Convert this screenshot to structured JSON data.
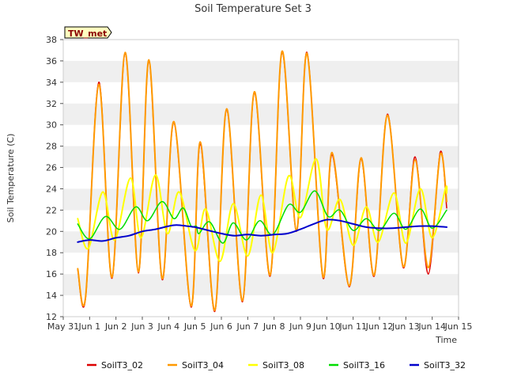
{
  "chart_data": {
    "type": "line",
    "title": "Soil Temperature Set 3",
    "xlabel": "Time",
    "ylabel": "Soil Temperature (C)",
    "station_badge": "TW_met",
    "xlim": [
      0,
      15
    ],
    "ylim": [
      12,
      38
    ],
    "xticks": [
      {
        "x": 0,
        "label": "May 31"
      },
      {
        "x": 1,
        "label": "Jun 1"
      },
      {
        "x": 2,
        "label": "Jun 2"
      },
      {
        "x": 3,
        "label": "Jun 3"
      },
      {
        "x": 4,
        "label": "Jun 4"
      },
      {
        "x": 5,
        "label": "Jun 5"
      },
      {
        "x": 6,
        "label": "Jun 6"
      },
      {
        "x": 7,
        "label": "Jun 7"
      },
      {
        "x": 8,
        "label": "Jun 8"
      },
      {
        "x": 9,
        "label": "Jun 9"
      },
      {
        "x": 10,
        "label": "Jun 10"
      },
      {
        "x": 11,
        "label": "Jun 11"
      },
      {
        "x": 12,
        "label": "Jun 12"
      },
      {
        "x": 13,
        "label": "Jun 13"
      },
      {
        "x": 14,
        "label": "Jun 14"
      },
      {
        "x": 15,
        "label": "Jun 15"
      }
    ],
    "yticks": [
      12,
      14,
      16,
      18,
      20,
      22,
      24,
      26,
      28,
      30,
      32,
      34,
      36,
      38
    ],
    "grid": "horizontal bands",
    "legend_position": "bottom",
    "series": [
      {
        "name": "SoilT3_02",
        "color": "#dd0000",
        "width": 1.5,
        "points": [
          [
            0.55,
            16.4
          ],
          [
            0.85,
            13.8
          ],
          [
            1.35,
            34.0
          ],
          [
            1.85,
            15.6
          ],
          [
            2.35,
            36.7
          ],
          [
            2.85,
            16.1
          ],
          [
            3.25,
            36.0
          ],
          [
            3.75,
            15.5
          ],
          [
            4.2,
            30.2
          ],
          [
            4.85,
            12.9
          ],
          [
            5.2,
            28.2
          ],
          [
            5.75,
            12.5
          ],
          [
            6.2,
            31.4
          ],
          [
            6.8,
            13.4
          ],
          [
            7.25,
            33.0
          ],
          [
            7.85,
            15.8
          ],
          [
            8.3,
            36.8
          ],
          [
            8.85,
            20.0
          ],
          [
            9.25,
            36.8
          ],
          [
            9.85,
            15.7
          ],
          [
            10.2,
            27.2
          ],
          [
            10.85,
            14.8
          ],
          [
            11.3,
            26.8
          ],
          [
            11.8,
            15.8
          ],
          [
            12.3,
            31.0
          ],
          [
            12.9,
            16.6
          ],
          [
            13.35,
            27.0
          ],
          [
            13.85,
            16.0
          ],
          [
            14.3,
            27.4
          ],
          [
            14.55,
            22.2
          ]
        ]
      },
      {
        "name": "SoilT3_04",
        "color": "#ff9900",
        "width": 2,
        "points": [
          [
            0.55,
            16.5
          ],
          [
            0.85,
            13.9
          ],
          [
            1.35,
            33.8
          ],
          [
            1.85,
            15.7
          ],
          [
            2.35,
            36.8
          ],
          [
            2.85,
            16.2
          ],
          [
            3.25,
            36.1
          ],
          [
            3.75,
            15.6
          ],
          [
            4.2,
            30.3
          ],
          [
            4.85,
            13.0
          ],
          [
            5.2,
            28.4
          ],
          [
            5.75,
            12.6
          ],
          [
            6.2,
            31.5
          ],
          [
            6.8,
            13.5
          ],
          [
            7.25,
            33.1
          ],
          [
            7.85,
            15.9
          ],
          [
            8.3,
            36.9
          ],
          [
            8.85,
            20.1
          ],
          [
            9.25,
            36.7
          ],
          [
            9.85,
            15.8
          ],
          [
            10.2,
            27.4
          ],
          [
            10.85,
            14.9
          ],
          [
            11.3,
            26.9
          ],
          [
            11.8,
            15.9
          ],
          [
            12.3,
            30.9
          ],
          [
            12.9,
            16.7
          ],
          [
            13.35,
            26.7
          ],
          [
            13.85,
            16.6
          ],
          [
            14.3,
            27.2
          ],
          [
            14.55,
            22.8
          ]
        ]
      },
      {
        "name": "SoilT3_08",
        "color": "#ffff00",
        "width": 2,
        "points": [
          [
            0.55,
            21.2
          ],
          [
            0.95,
            18.4
          ],
          [
            1.5,
            23.7
          ],
          [
            1.95,
            19.2
          ],
          [
            2.55,
            25.0
          ],
          [
            2.95,
            19.4
          ],
          [
            3.5,
            25.3
          ],
          [
            3.95,
            19.8
          ],
          [
            4.4,
            23.7
          ],
          [
            5.0,
            18.2
          ],
          [
            5.4,
            22.1
          ],
          [
            5.95,
            17.2
          ],
          [
            6.45,
            22.6
          ],
          [
            7.0,
            17.7
          ],
          [
            7.5,
            23.4
          ],
          [
            7.95,
            18.0
          ],
          [
            8.55,
            25.2
          ],
          [
            9.0,
            21.3
          ],
          [
            9.6,
            26.8
          ],
          [
            10.0,
            20.2
          ],
          [
            10.5,
            23.0
          ],
          [
            11.0,
            18.7
          ],
          [
            11.5,
            22.3
          ],
          [
            11.95,
            19.0
          ],
          [
            12.55,
            23.6
          ],
          [
            13.0,
            18.9
          ],
          [
            13.55,
            24.0
          ],
          [
            14.0,
            19.4
          ],
          [
            14.5,
            24.0
          ],
          [
            14.55,
            23.6
          ]
        ]
      },
      {
        "name": "SoilT3_16",
        "color": "#00dd00",
        "width": 1.5,
        "points": [
          [
            0.55,
            20.7
          ],
          [
            1.0,
            19.3
          ],
          [
            1.6,
            21.4
          ],
          [
            2.15,
            20.2
          ],
          [
            2.75,
            22.3
          ],
          [
            3.2,
            21.0
          ],
          [
            3.75,
            22.8
          ],
          [
            4.2,
            21.2
          ],
          [
            4.55,
            22.2
          ],
          [
            4.85,
            20.5
          ],
          [
            5.05,
            20.5
          ],
          [
            5.15,
            19.8
          ],
          [
            5.55,
            20.9
          ],
          [
            6.05,
            18.9
          ],
          [
            6.45,
            20.8
          ],
          [
            6.95,
            19.2
          ],
          [
            7.45,
            21.0
          ],
          [
            7.95,
            19.7
          ],
          [
            8.55,
            22.5
          ],
          [
            9.0,
            21.8
          ],
          [
            9.55,
            23.8
          ],
          [
            10.05,
            21.4
          ],
          [
            10.5,
            22.0
          ],
          [
            11.0,
            20.1
          ],
          [
            11.5,
            21.2
          ],
          [
            12.0,
            20.1
          ],
          [
            12.55,
            21.7
          ],
          [
            13.0,
            20.2
          ],
          [
            13.55,
            22.1
          ],
          [
            14.0,
            20.3
          ],
          [
            14.55,
            22.0
          ]
        ]
      },
      {
        "name": "SoilT3_32",
        "color": "#0000cc",
        "width": 2,
        "points": [
          [
            0.55,
            19.0
          ],
          [
            1.0,
            19.2
          ],
          [
            1.5,
            19.1
          ],
          [
            2.0,
            19.4
          ],
          [
            2.5,
            19.6
          ],
          [
            3.0,
            20.0
          ],
          [
            3.5,
            20.2
          ],
          [
            4.0,
            20.5
          ],
          [
            4.3,
            20.6
          ],
          [
            4.7,
            20.5
          ],
          [
            5.0,
            20.4
          ],
          [
            5.5,
            20.1
          ],
          [
            6.0,
            19.8
          ],
          [
            6.5,
            19.6
          ],
          [
            7.0,
            19.7
          ],
          [
            7.5,
            19.6
          ],
          [
            8.0,
            19.7
          ],
          [
            8.5,
            19.8
          ],
          [
            9.0,
            20.2
          ],
          [
            9.5,
            20.7
          ],
          [
            10.0,
            21.1
          ],
          [
            10.5,
            21.0
          ],
          [
            11.0,
            20.7
          ],
          [
            11.5,
            20.4
          ],
          [
            12.0,
            20.3
          ],
          [
            12.5,
            20.3
          ],
          [
            13.0,
            20.4
          ],
          [
            13.5,
            20.5
          ],
          [
            14.0,
            20.5
          ],
          [
            14.55,
            20.4
          ]
        ]
      }
    ]
  }
}
